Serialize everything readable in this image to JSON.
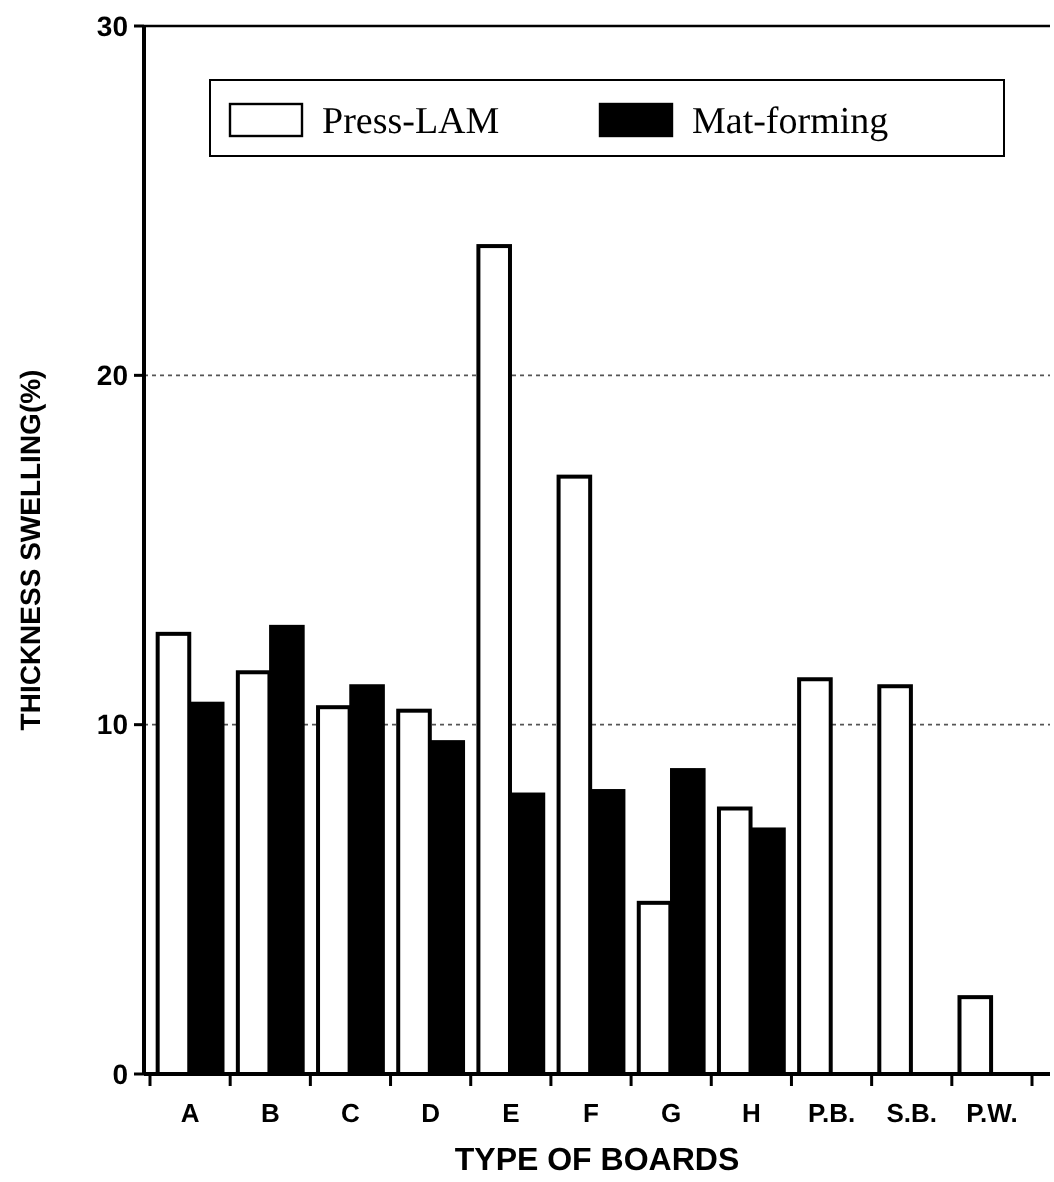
{
  "chart_data": {
    "type": "bar",
    "xlabel": "TYPE OF BOARDS",
    "ylabel": "THICKNESS SWELLING(%)",
    "categories": [
      "A",
      "B",
      "C",
      "D",
      "E",
      "F",
      "G",
      "H",
      "P.B.",
      "S.B.",
      "P.W."
    ],
    "series": [
      {
        "name": "Press-LAM",
        "color": "#ffffff",
        "values": [
          12.6,
          11.5,
          10.5,
          10.4,
          23.7,
          17.1,
          4.9,
          7.6,
          11.3,
          11.1,
          2.2
        ]
      },
      {
        "name": "Mat-forming",
        "color": "#000000",
        "values": [
          10.6,
          12.8,
          11.1,
          9.5,
          8.0,
          8.1,
          8.7,
          7.0,
          null,
          null,
          null
        ]
      }
    ],
    "ylim": [
      0,
      30
    ],
    "yticks": [
      0,
      10,
      20,
      30
    ],
    "grid": "y",
    "legend": "top"
  }
}
